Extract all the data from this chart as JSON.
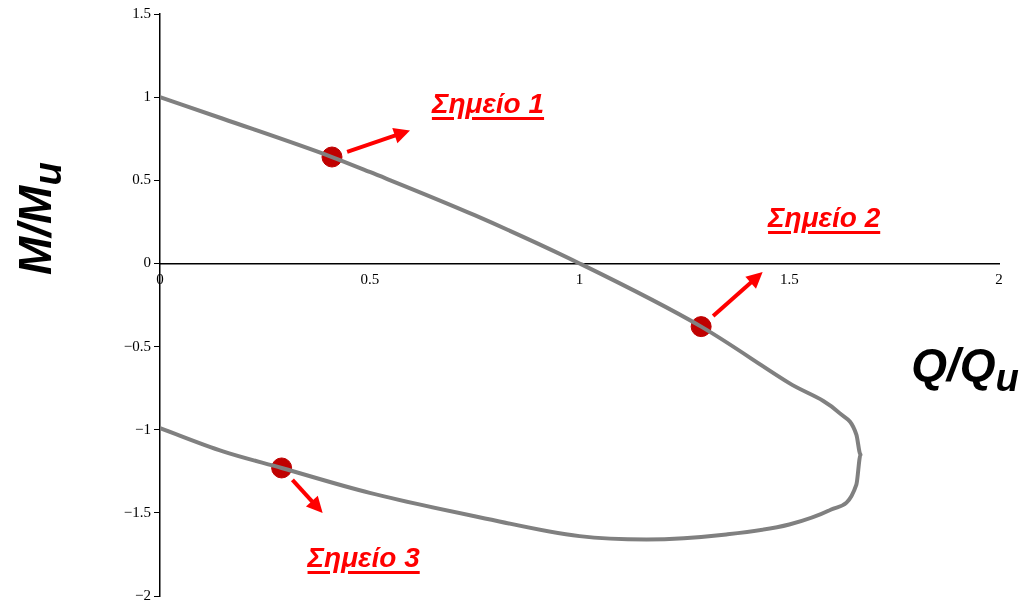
{
  "chart_data": {
    "type": "line",
    "xlabel": "Q/Q$_{u}$",
    "ylabel": "M/M$_{u}$",
    "xlim": [
      0,
      2
    ],
    "xticks": [
      0,
      0.5,
      1,
      1.5,
      2
    ],
    "ylim": [
      -2,
      1.5
    ],
    "yticks": [
      -2,
      -1.5,
      -1,
      -0.5,
      0,
      0.5,
      1,
      1.5
    ],
    "grid": false,
    "legend": false,
    "series": [
      {
        "color": "#808080",
        "marker": "none",
        "x": [
          0,
          0.15,
          0.41,
          0.5,
          0.75,
          1,
          1.29,
          1.5,
          1.62,
          1.66,
          1.67,
          1.66,
          1.6,
          1.5,
          1.35,
          1.16,
          1,
          0.75,
          0.5,
          0.29,
          0.15,
          0
        ],
        "values": [
          1,
          0.87,
          0.64,
          0.55,
          0.29,
          0,
          -0.38,
          -0.72,
          -0.9,
          -1.03,
          -1.15,
          -1.33,
          -1.48,
          -1.57,
          -1.63,
          -1.66,
          -1.64,
          -1.52,
          -1.38,
          -1.23,
          -1.13,
          -0.99
        ]
      },
      {
        "type": "scatter",
        "color": "#c00000",
        "marker": "circle",
        "x": [
          0.41,
          1.29,
          0.29
        ],
        "values": [
          0.64,
          -0.38,
          -1.23
        ]
      }
    ],
    "annotations": [
      "Σημείο 1",
      "Σημείο 2",
      "Σημείο 3"
    ]
  }
}
